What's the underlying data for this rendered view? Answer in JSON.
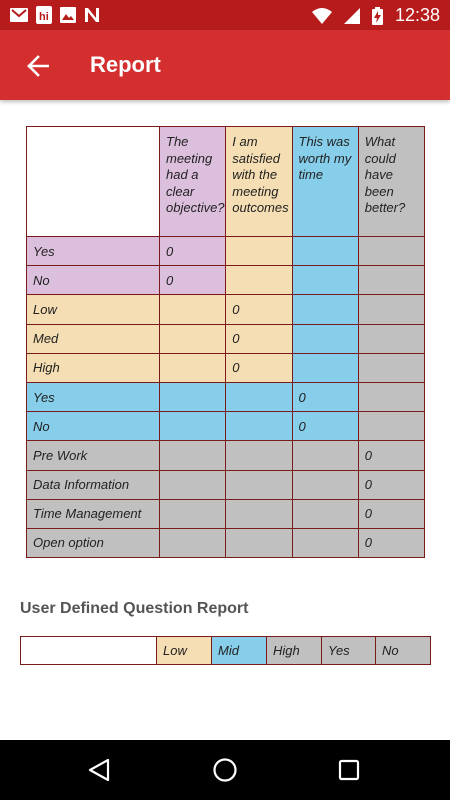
{
  "status_bar": {
    "time": "12:38",
    "left_icons": [
      "gmail-icon",
      "hi-app-icon",
      "image-icon",
      "n-app-icon"
    ],
    "right_icons": [
      "wifi-icon",
      "signal-icon",
      "battery-charging-icon"
    ]
  },
  "app_bar": {
    "title": "Report"
  },
  "report": {
    "headers": [
      "The meeting had a clear objective?",
      "I am satisfied with the meeting outcomes",
      "This was worth my time",
      "What could have been better?"
    ],
    "rows": [
      {
        "label": "Yes",
        "cells": [
          "0",
          "",
          "",
          ""
        ]
      },
      {
        "label": "No",
        "cells": [
          "0",
          "",
          "",
          ""
        ]
      },
      {
        "label": "Low",
        "cells": [
          "",
          "0",
          "",
          ""
        ]
      },
      {
        "label": "Med",
        "cells": [
          "",
          "0",
          "",
          ""
        ]
      },
      {
        "label": "High",
        "cells": [
          "",
          "0",
          "",
          ""
        ]
      },
      {
        "label": "Yes",
        "cells": [
          "",
          "",
          "0",
          ""
        ]
      },
      {
        "label": "No",
        "cells": [
          "",
          "",
          "0",
          ""
        ]
      },
      {
        "label": "Pre Work",
        "cells": [
          "",
          "",
          "",
          "0"
        ]
      },
      {
        "label": "Data Information",
        "cells": [
          "",
          "",
          "",
          "0"
        ]
      },
      {
        "label": "Time Management",
        "cells": [
          "",
          "",
          "",
          "0"
        ]
      },
      {
        "label": "Open option",
        "cells": [
          "",
          "",
          "",
          "0"
        ]
      }
    ]
  },
  "user_defined": {
    "title": "User Defined Question Report",
    "columns": [
      "",
      "Low",
      "Mid",
      "High",
      "Yes",
      "No"
    ]
  },
  "colors": {
    "status_bar": "#b71c1c",
    "app_bar": "#d32f2f",
    "pink": "#dcbfdc",
    "peach": "#f5deb3",
    "blue": "#87ceeb",
    "grey": "#c0c0c0",
    "border": "#7a1a1a"
  },
  "nav_bar": {
    "icons": [
      "back-triangle-icon",
      "home-circle-icon",
      "recents-square-icon"
    ]
  }
}
